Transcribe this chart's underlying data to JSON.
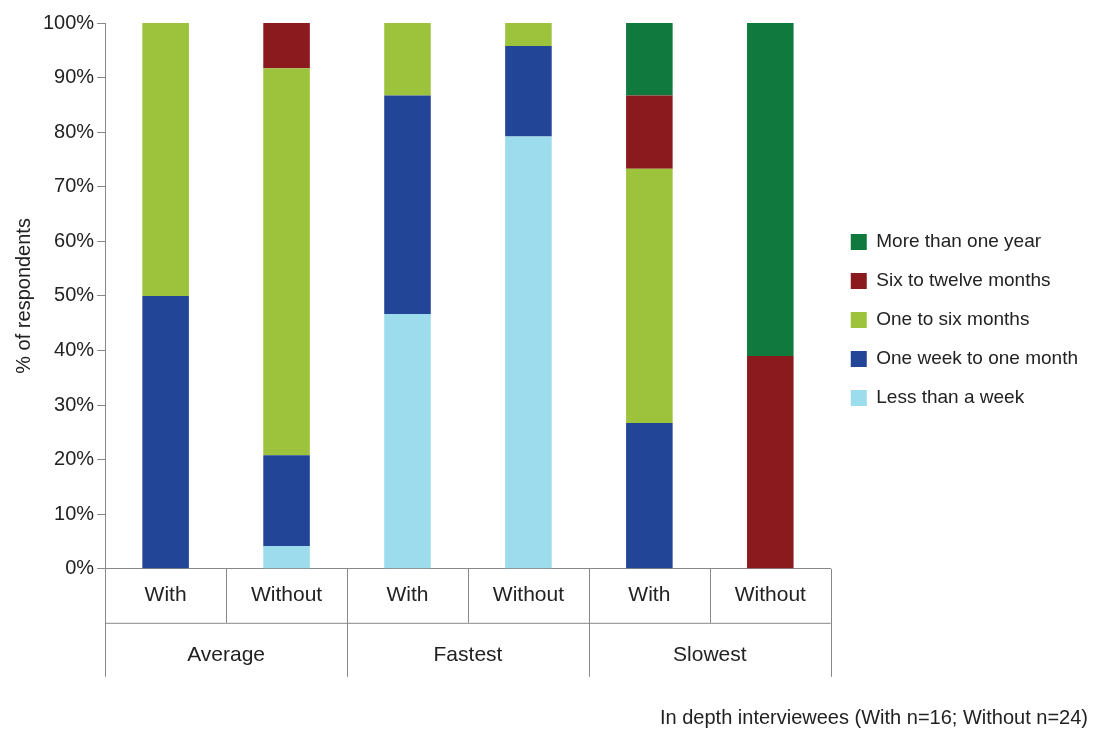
{
  "chart_data": {
    "type": "bar",
    "stacked": true,
    "ylabel": "% of respondents",
    "categories": [
      "With",
      "Without",
      "With",
      "Without",
      "With",
      "Without"
    ],
    "series": [
      {
        "name": "Less than a week",
        "color": "#9ddcec",
        "values": [
          0,
          4.2,
          46.7,
          79.2,
          0,
          0
        ]
      },
      {
        "name": "One week to one month",
        "color": "#234597",
        "values": [
          50,
          16.6,
          40,
          16.6,
          26.7,
          0
        ]
      },
      {
        "name": "One to six months",
        "color": "#9dc23b",
        "values": [
          50,
          70.9,
          13.3,
          4.2,
          46.6,
          0
        ]
      },
      {
        "name": "Six to twelve months",
        "color": "#8b1a1e",
        "values": [
          0,
          8.3,
          0,
          0,
          13.4,
          39
        ]
      },
      {
        "name": "More than one year",
        "color": "#107a3e",
        "values": [
          0,
          0,
          0,
          0,
          13.3,
          61
        ]
      }
    ],
    "ylim": [
      0,
      100
    ],
    "yticks": [
      {
        "value": 0,
        "label": "0%"
      },
      {
        "value": 10,
        "label": "10%"
      },
      {
        "value": 20,
        "label": "20%"
      },
      {
        "value": 30,
        "label": "30%"
      },
      {
        "value": 40,
        "label": "40%"
      },
      {
        "value": 50,
        "label": "50%"
      },
      {
        "value": 60,
        "label": "60%"
      },
      {
        "value": 70,
        "label": "70%"
      },
      {
        "value": 80,
        "label": "80%"
      },
      {
        "value": 90,
        "label": "90%"
      },
      {
        "value": 100,
        "label": "100%"
      }
    ],
    "grid": false,
    "legend": "right",
    "annotations": [
      "Average",
      "Fastest",
      "Slowest",
      "In depth interviewees (With n=16; Without n=24)"
    ]
  }
}
